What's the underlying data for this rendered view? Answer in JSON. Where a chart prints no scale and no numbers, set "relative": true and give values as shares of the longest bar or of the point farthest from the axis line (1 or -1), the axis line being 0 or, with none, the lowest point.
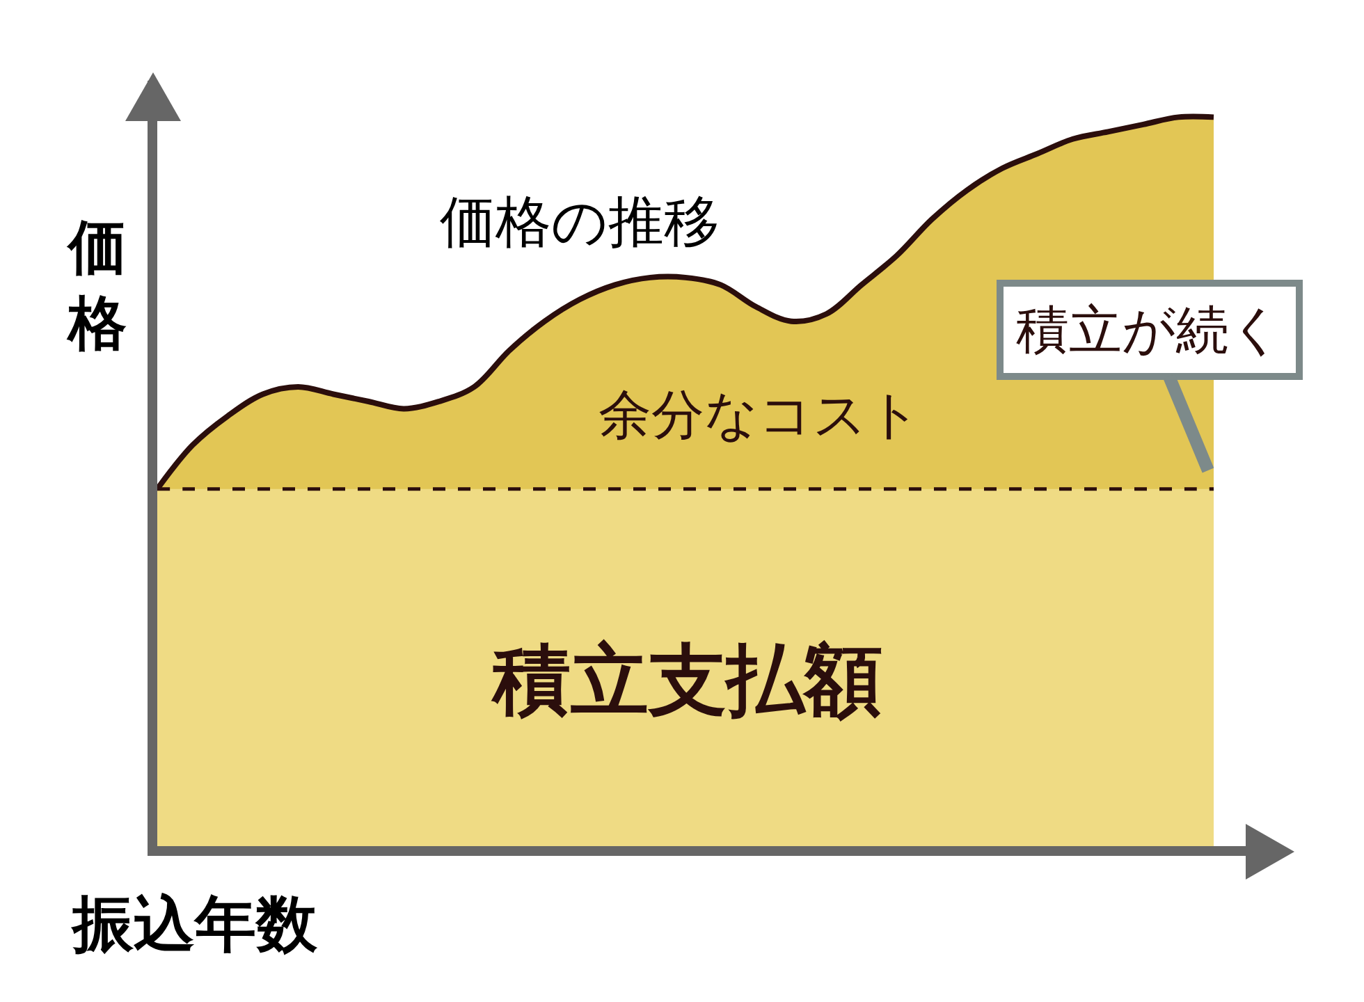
{
  "chart_data": {
    "type": "area",
    "relative": true,
    "xlabel": "振込年数",
    "ylabel": "価格",
    "categories": [
      null,
      null,
      null,
      null,
      null,
      null,
      null,
      null,
      null,
      null,
      null,
      null,
      null,
      null,
      null,
      null,
      null,
      null,
      null,
      null,
      null,
      null,
      null,
      null,
      null,
      null,
      null,
      null,
      null,
      null,
      null
    ],
    "series": [
      {
        "name": "価格の推移",
        "color": "#e2c655",
        "values": [
          0.49,
          0.55,
          0.59,
          0.62,
          0.63,
          0.62,
          0.61,
          0.6,
          0.61,
          0.63,
          0.68,
          0.72,
          0.75,
          0.77,
          0.78,
          0.78,
          0.77,
          0.74,
          0.72,
          0.73,
          0.77,
          0.81,
          0.86,
          0.9,
          0.93,
          0.95,
          0.97,
          0.98,
          0.99,
          1.0,
          1.0
        ]
      },
      {
        "name": "積立支払額",
        "color": "#efdb84",
        "line_style": "dashed",
        "values": [
          0.49,
          0.49,
          0.49,
          0.49,
          0.49,
          0.49,
          0.49,
          0.49,
          0.49,
          0.49,
          0.49,
          0.49,
          0.49,
          0.49,
          0.49,
          0.49,
          0.49,
          0.49,
          0.49,
          0.49,
          0.49,
          0.49,
          0.49,
          0.49,
          0.49,
          0.49,
          0.49,
          0.49,
          0.49,
          0.49,
          0.49
        ]
      }
    ],
    "annotations": [
      "余分なコスト",
      "積立が続く"
    ],
    "legend": false
  }
}
